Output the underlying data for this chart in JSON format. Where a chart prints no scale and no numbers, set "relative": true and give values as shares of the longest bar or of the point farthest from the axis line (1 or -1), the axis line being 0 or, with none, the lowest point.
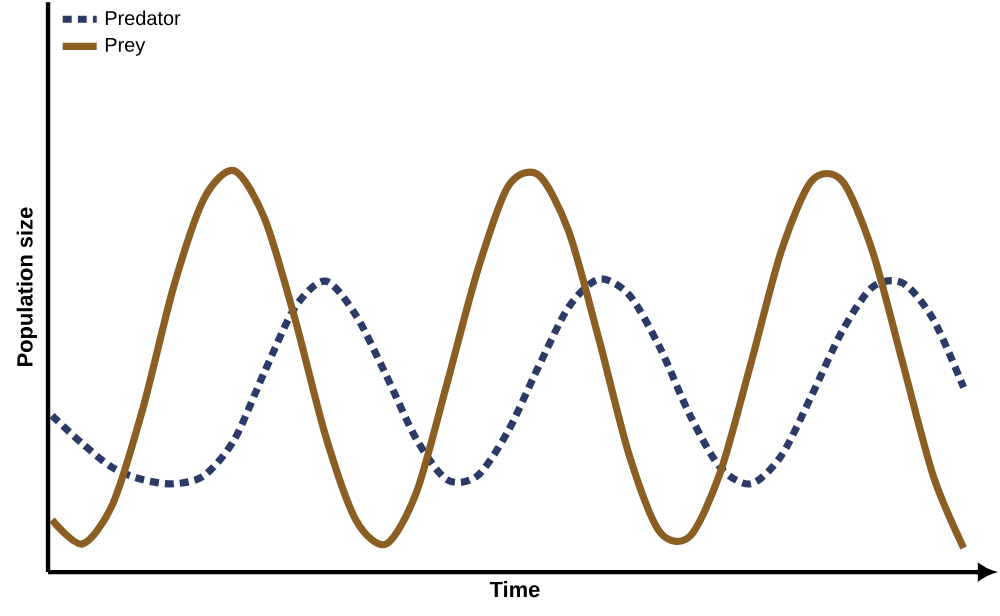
{
  "chart_data": {
    "type": "line",
    "relative": true,
    "xlabel": "Time",
    "ylabel": "Population size",
    "legend": "top left",
    "categories": [
      null,
      null,
      null,
      null,
      null,
      null,
      null,
      null,
      null,
      null,
      null,
      null,
      null,
      null,
      null,
      null,
      null,
      null,
      null,
      null,
      null,
      null,
      null,
      null,
      null,
      null,
      null,
      null,
      null,
      null,
      null
    ],
    "series": [
      {
        "name": "Predator",
        "color": "#2b3a67",
        "line_style": "dotted",
        "values": [
          0.39,
          0.32,
          0.26,
          0.23,
          0.22,
          0.24,
          0.33,
          0.5,
          0.66,
          0.725,
          0.64,
          0.49,
          0.33,
          0.23,
          0.24,
          0.35,
          0.51,
          0.66,
          0.73,
          0.69,
          0.56,
          0.39,
          0.26,
          0.22,
          0.29,
          0.44,
          0.6,
          0.71,
          0.72,
          0.63,
          0.46
        ]
      },
      {
        "name": "Prey",
        "color": "#8b5e23",
        "line_style": "solid",
        "values": [
          0.13,
          0.07,
          0.17,
          0.41,
          0.71,
          0.93,
          1.0,
          0.88,
          0.63,
          0.34,
          0.13,
          0.07,
          0.2,
          0.47,
          0.75,
          0.96,
          0.99,
          0.85,
          0.58,
          0.29,
          0.1,
          0.09,
          0.25,
          0.52,
          0.8,
          0.975,
          0.975,
          0.8,
          0.52,
          0.24,
          0.06
        ]
      }
    ]
  }
}
